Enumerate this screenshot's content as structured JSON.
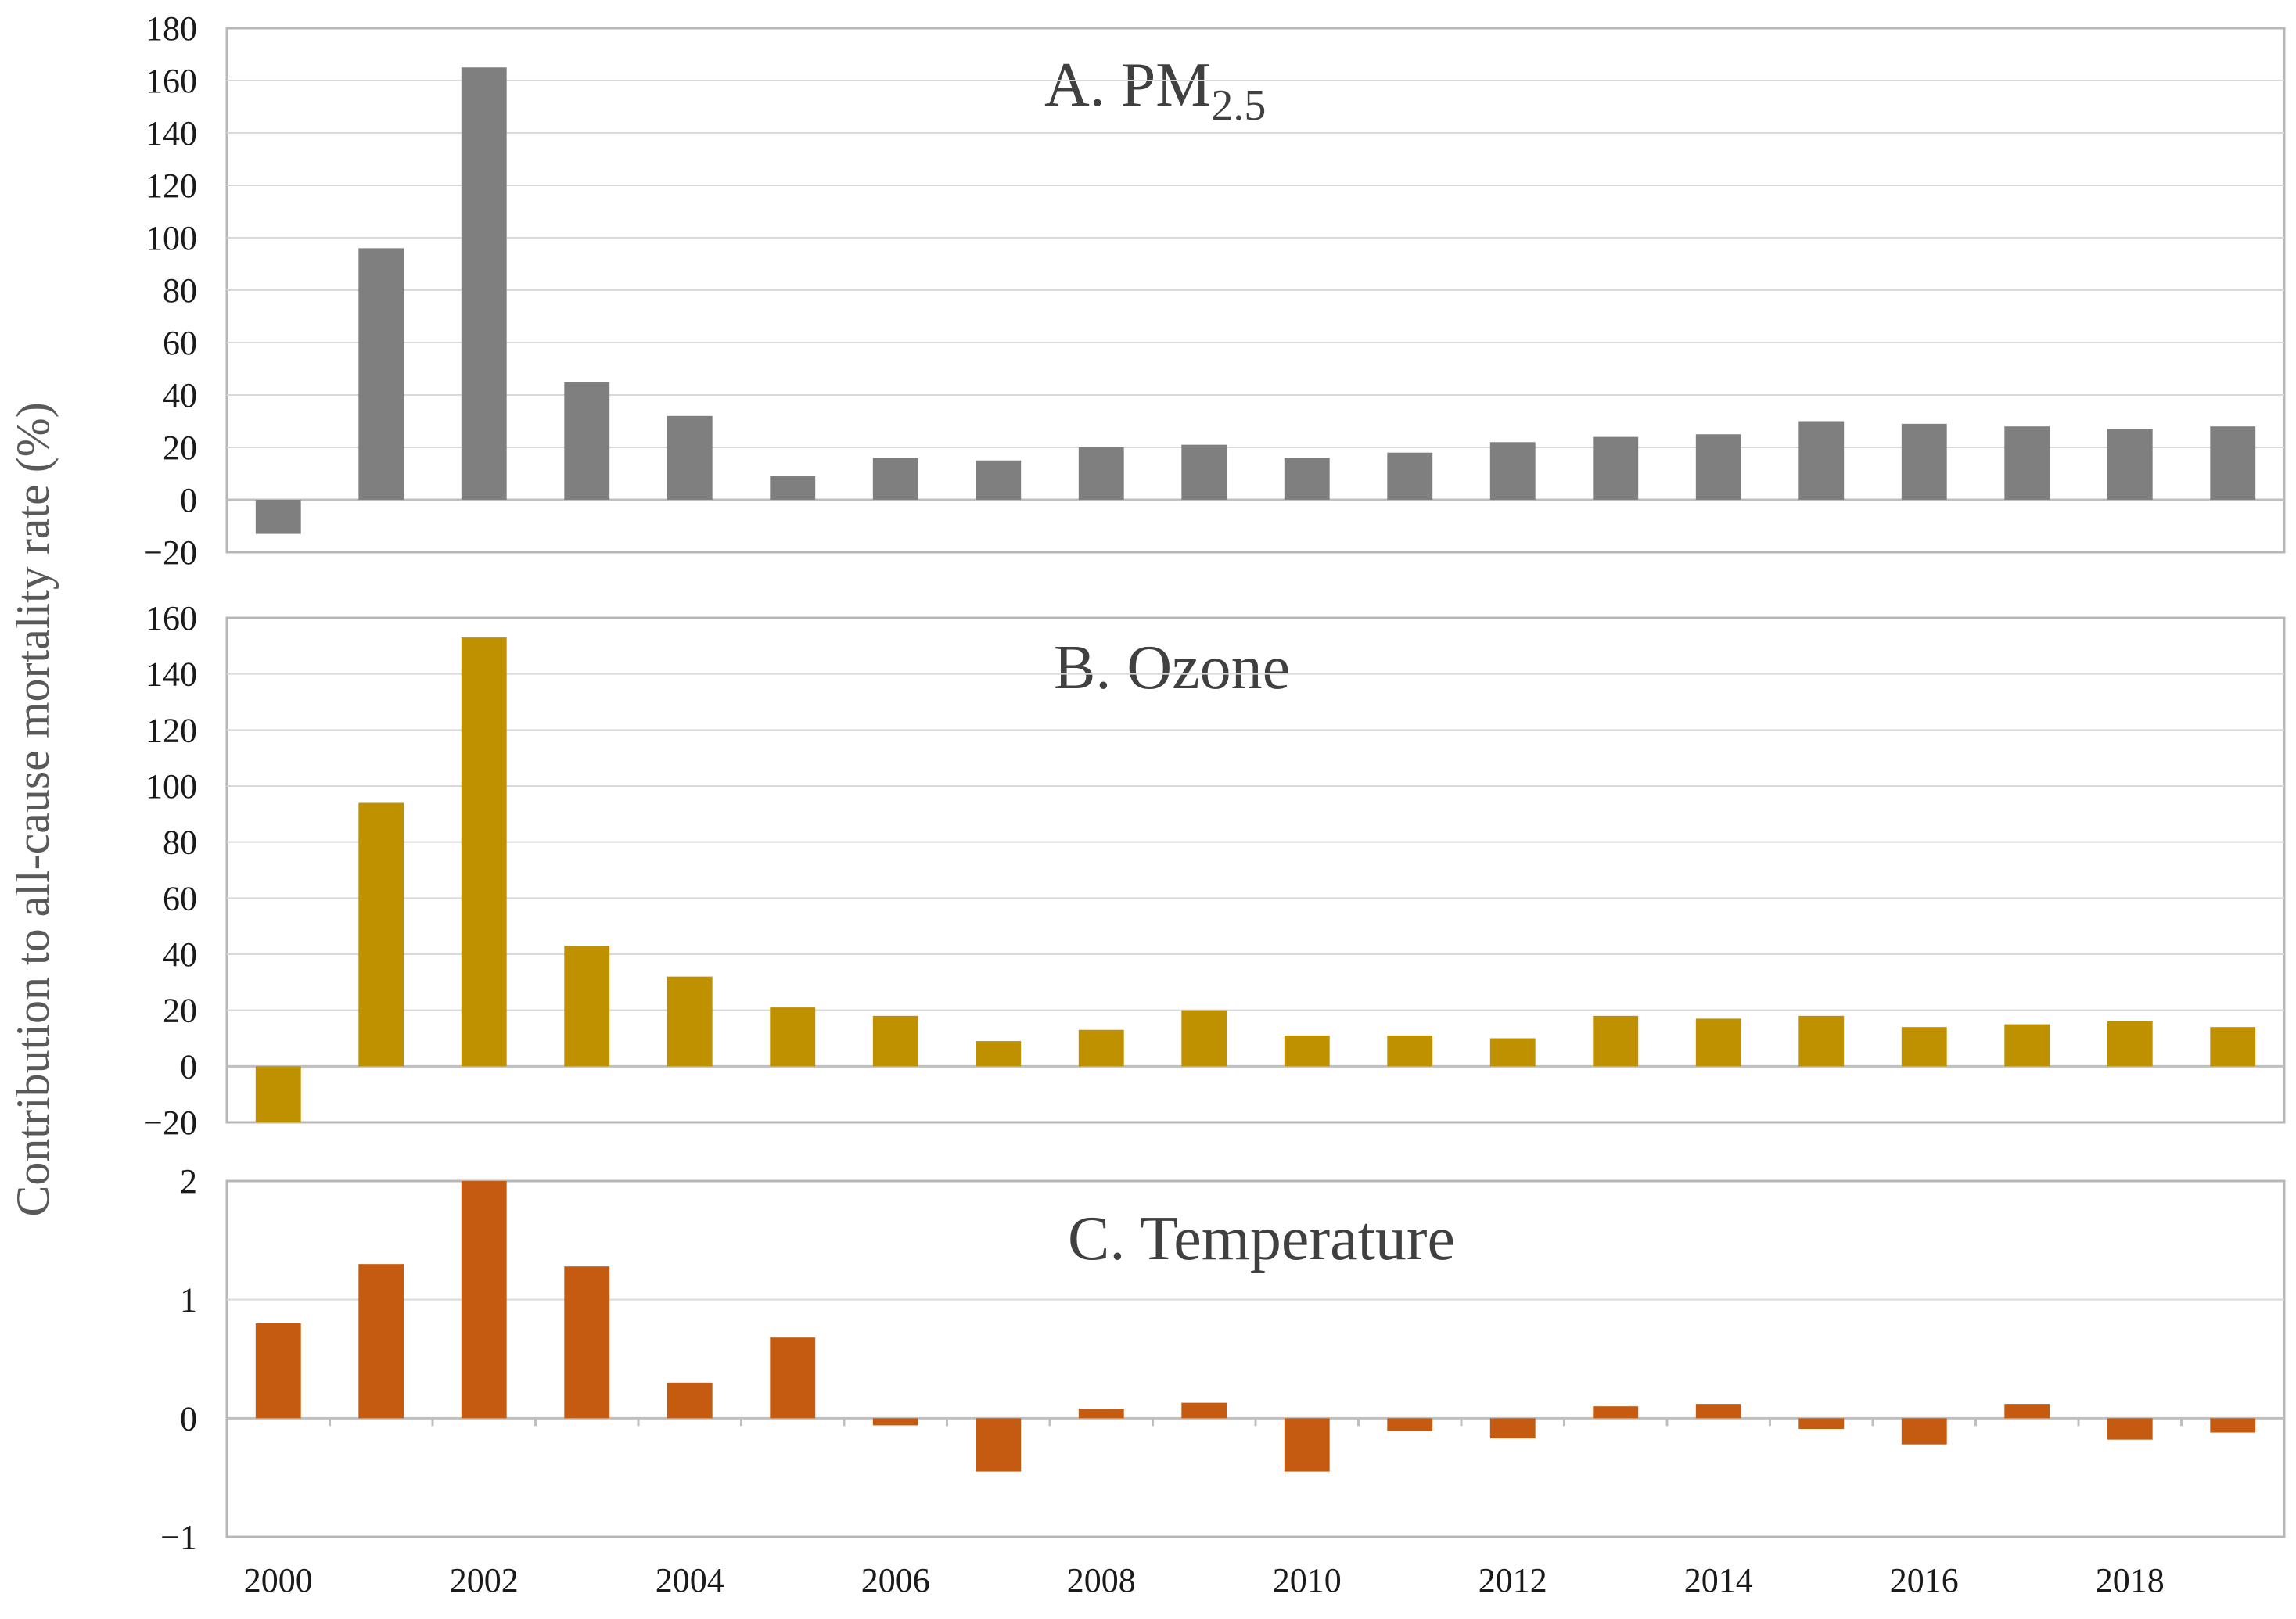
{
  "figure": {
    "ylabel": "Contribution to all-cause mortality rate (%)"
  },
  "chart_data": [
    {
      "type": "bar",
      "title": "A. PM",
      "title_subscript": "2.5",
      "color": "#7f7f7f",
      "categories": [
        "2000",
        "2001",
        "2002",
        "2003",
        "2004",
        "2005",
        "2006",
        "2007",
        "2008",
        "2009",
        "2010",
        "2011",
        "2012",
        "2013",
        "2014",
        "2015",
        "2016",
        "2017",
        "2018",
        "2019"
      ],
      "values": [
        -13,
        96,
        165,
        45,
        32,
        9,
        16,
        15,
        20,
        21,
        16,
        18,
        22,
        24,
        25,
        30,
        29,
        28,
        27,
        28
      ],
      "ylim": [
        -20,
        180
      ],
      "yticks": [
        -20,
        0,
        20,
        40,
        60,
        80,
        100,
        120,
        140,
        160,
        180
      ],
      "ytick_labels": [
        "−20",
        "0",
        "20",
        "40",
        "60",
        "80",
        "100",
        "120",
        "140",
        "160",
        "180"
      ],
      "xlabel": "",
      "ylabel": ""
    },
    {
      "type": "bar",
      "title": "B. Ozone",
      "title_subscript": "",
      "color": "#bf9000",
      "categories": [
        "2000",
        "2001",
        "2002",
        "2003",
        "2004",
        "2005",
        "2006",
        "2007",
        "2008",
        "2009",
        "2010",
        "2011",
        "2012",
        "2013",
        "2014",
        "2015",
        "2016",
        "2017",
        "2018",
        "2019"
      ],
      "values": [
        -20,
        94,
        153,
        43,
        32,
        21,
        18,
        9,
        13,
        20,
        11,
        11,
        10,
        18,
        17,
        18,
        14,
        15,
        16,
        14
      ],
      "ylim": [
        -20,
        160
      ],
      "yticks": [
        -20,
        0,
        20,
        40,
        60,
        80,
        100,
        120,
        140,
        160
      ],
      "ytick_labels": [
        "−20",
        "0",
        "20",
        "40",
        "60",
        "80",
        "100",
        "120",
        "140",
        "160"
      ],
      "xlabel": "",
      "ylabel": ""
    },
    {
      "type": "bar",
      "title": "C. Temperature",
      "title_subscript": "",
      "color": "#c55a11",
      "categories": [
        "2000",
        "2001",
        "2002",
        "2003",
        "2004",
        "2005",
        "2006",
        "2007",
        "2008",
        "2009",
        "2010",
        "2011",
        "2012",
        "2013",
        "2014",
        "2015",
        "2016",
        "2017",
        "2018",
        "2019"
      ],
      "values": [
        0.8,
        1.3,
        2.0,
        1.28,
        0.3,
        0.68,
        -0.06,
        -0.45,
        0.08,
        0.13,
        -0.45,
        -0.11,
        -0.17,
        0.1,
        0.12,
        -0.09,
        -0.22,
        0.12,
        -0.18,
        -0.12
      ],
      "ylim": [
        -1,
        2
      ],
      "yticks": [
        -1,
        0,
        1,
        2
      ],
      "ytick_labels": [
        "−1",
        "0",
        "1",
        "2"
      ],
      "xtick_labels": [
        "2000",
        "2002",
        "2004",
        "2006",
        "2008",
        "2010",
        "2012",
        "2014",
        "2016",
        "2018"
      ],
      "xlabel": "",
      "ylabel": ""
    }
  ]
}
